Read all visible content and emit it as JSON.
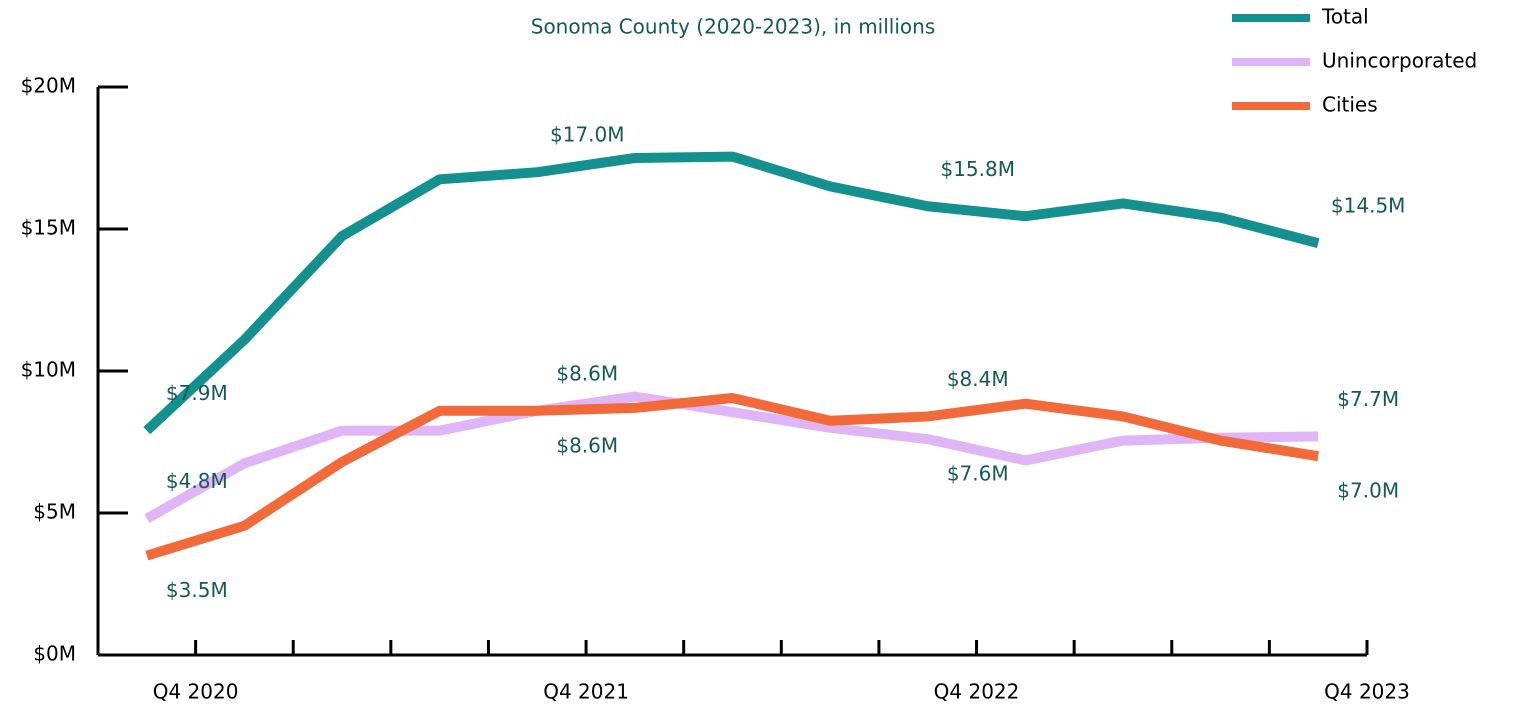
{
  "chart_data": {
    "type": "line",
    "subtitle": "Sonoma County (2020-2023), in millions",
    "x": [
      -0.5,
      0.5,
      1.5,
      2.5,
      3.5,
      4.5,
      5.5,
      6.5,
      7.5,
      8.5,
      9.5,
      10.5,
      11.5
    ],
    "xlim": [
      -1,
      12
    ],
    "xticks": [
      {
        "value": 0,
        "label": "Q4 2020"
      },
      {
        "value": 1,
        "label": null
      },
      {
        "value": 2,
        "label": null
      },
      {
        "value": 3,
        "label": null
      },
      {
        "value": 4,
        "label": "Q4 2021"
      },
      {
        "value": 5,
        "label": null
      },
      {
        "value": 6,
        "label": null
      },
      {
        "value": 7,
        "label": null
      },
      {
        "value": 8,
        "label": "Q4 2022"
      },
      {
        "value": 9,
        "label": null
      },
      {
        "value": 10,
        "label": null
      },
      {
        "value": 11,
        "label": null
      },
      {
        "value": 12,
        "label": "Q4 2023"
      }
    ],
    "ylim": [
      0,
      20
    ],
    "yticks": [
      {
        "value": 0,
        "label": "$0M"
      },
      {
        "value": 5,
        "label": "$5M"
      },
      {
        "value": 10,
        "label": "$10M"
      },
      {
        "value": 15,
        "label": "$15M"
      },
      {
        "value": 20,
        "label": "$20M"
      }
    ],
    "legend": "top-right",
    "series": [
      {
        "name": "Total",
        "color": "#14918f",
        "values": [
          7.9,
          11.1,
          14.75,
          16.75,
          17.0,
          17.5,
          17.55,
          16.5,
          15.8,
          15.45,
          15.9,
          15.4,
          14.5
        ],
        "value_labels": [
          "$7.9M",
          null,
          null,
          null,
          "$17.0M",
          null,
          null,
          null,
          "$15.8M",
          null,
          null,
          null,
          "$14.5M"
        ]
      },
      {
        "name": "Unincorporated",
        "color": "#dfb5f5",
        "values": [
          4.8,
          6.75,
          7.9,
          7.9,
          8.6,
          9.1,
          8.55,
          8.0,
          7.6,
          6.85,
          7.55,
          7.65,
          7.7
        ],
        "value_labels": [
          "$4.8M",
          null,
          null,
          null,
          "$8.6M",
          null,
          null,
          null,
          "$7.6M",
          null,
          null,
          null,
          "$7.7M"
        ]
      },
      {
        "name": "Cities",
        "color": "#f26a3a",
        "values": [
          3.5,
          4.55,
          6.8,
          8.6,
          8.6,
          8.7,
          9.05,
          8.25,
          8.4,
          8.85,
          8.4,
          7.55,
          7.0
        ],
        "value_labels": [
          "$3.5M",
          null,
          null,
          null,
          "$8.6M",
          null,
          null,
          null,
          "$8.4M",
          null,
          null,
          null,
          "$7.0M"
        ]
      }
    ]
  }
}
